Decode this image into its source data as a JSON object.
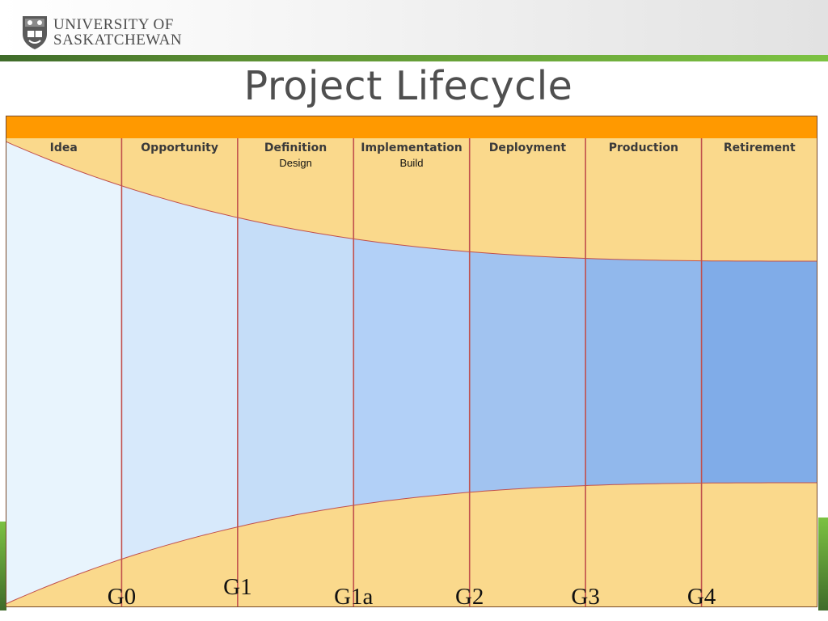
{
  "header": {
    "logo_line1": "UNIVERSITY OF",
    "logo_line2": "SASKATCHEWAN",
    "shield_icon": "university-shield-icon"
  },
  "title": "Project Lifecycle",
  "colors": {
    "top_bar": "#ff9900",
    "phase_band": "#fad98c",
    "divider": "#c0504d",
    "green_dark": "#3f6b2a",
    "green_light": "#7cc242"
  },
  "phases": [
    {
      "label": "Idea",
      "sub": "",
      "fill": "#e8f4fd"
    },
    {
      "label": "Opportunity",
      "sub": "",
      "fill": "#d7e9fb"
    },
    {
      "label": "Definition",
      "sub": "Design",
      "fill": "#c5ddf8"
    },
    {
      "label": "Implementation",
      "sub": "Build",
      "fill": "#b2d0f7"
    },
    {
      "label": "Deployment",
      "sub": "",
      "fill": "#a1c3f0"
    },
    {
      "label": "Production",
      "sub": "",
      "fill": "#91b8ec"
    },
    {
      "label": "Retirement",
      "sub": "",
      "fill": "#80ace8"
    }
  ],
  "gates": [
    "G0",
    "G1",
    "G1a",
    "G2",
    "G3",
    "G4"
  ]
}
